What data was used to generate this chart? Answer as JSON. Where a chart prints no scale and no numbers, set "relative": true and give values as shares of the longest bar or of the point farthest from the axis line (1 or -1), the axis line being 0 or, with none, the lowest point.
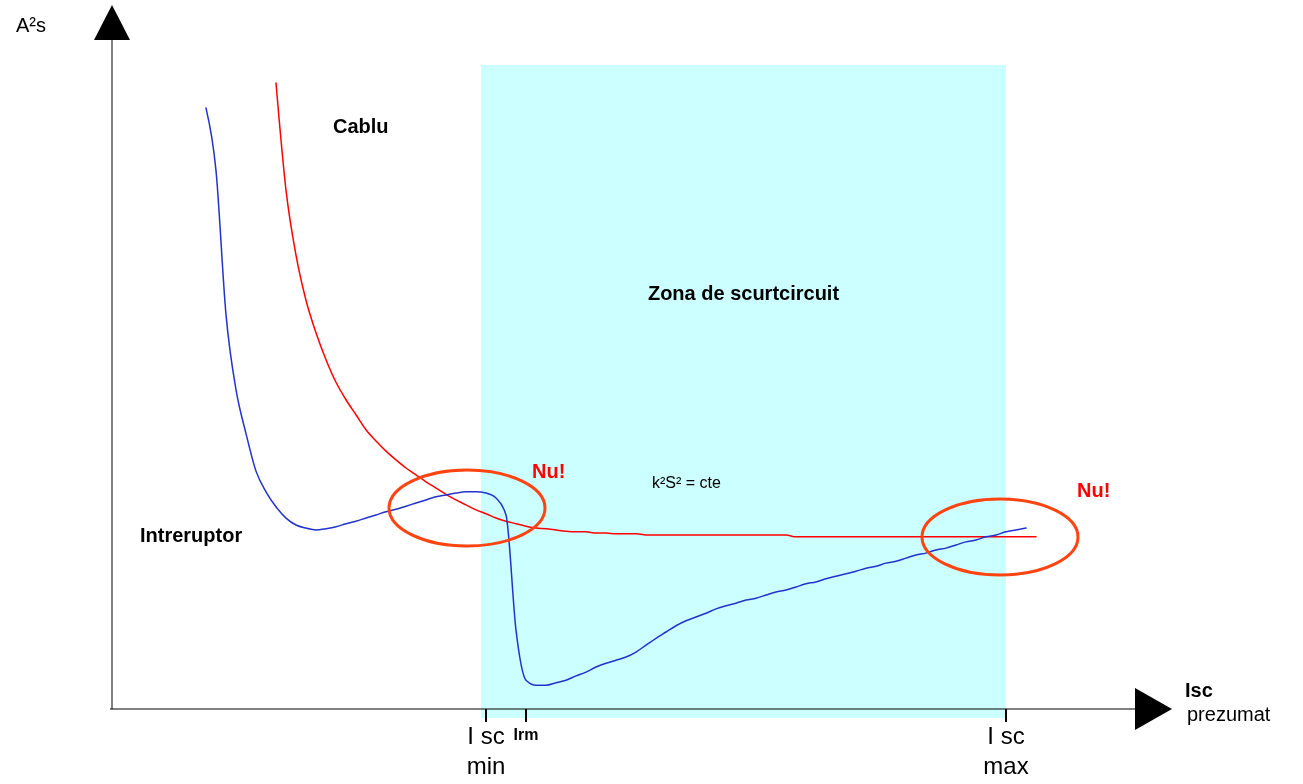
{
  "chart_data": {
    "type": "line",
    "relative": true,
    "categories": [
      null,
      null,
      null,
      null,
      null,
      null,
      null,
      null,
      null,
      null,
      null,
      null,
      null,
      null,
      null,
      null,
      null,
      null,
      null,
      null,
      null,
      null,
      null,
      null,
      null,
      null,
      null,
      null,
      "I sc\nmin",
      null,
      null,
      null,
      "Irm",
      null,
      null,
      null,
      null,
      null,
      null,
      null,
      null,
      null,
      null,
      null,
      null,
      null,
      null,
      null,
      null,
      null,
      null,
      null,
      null,
      null,
      null,
      null,
      null,
      null,
      null,
      null,
      null,
      null,
      null,
      null,
      null,
      null,
      null,
      null,
      null,
      null,
      null,
      null,
      null,
      null,
      null,
      null,
      null,
      null,
      null,
      null,
      "I sc\nmax",
      null,
      null,
      null,
      null
    ],
    "bands": [
      {
        "axis": "x",
        "from": "I sc\nmin",
        "to": "I sc\nmax",
        "label": "Zona de scurtcircuit",
        "color": "#ccffff"
      }
    ],
    "annotations": [
      "A²s",
      "Isc\nprezumat",
      "k²S² = cte",
      "Nu!",
      "Nu!"
    ],
    "series": [
      {
        "name": "Cablu",
        "color": "#ff0000",
        "values": [
          null,
          null,
          null,
          null,
          null,
          null,
          null,
          1.0,
          0.829,
          0.725,
          0.653,
          0.601,
          0.558,
          0.522,
          0.494,
          0.47,
          0.446,
          0.428,
          0.412,
          0.398,
          0.385,
          0.374,
          0.363,
          0.353,
          0.343,
          0.334,
          0.326,
          0.318,
          0.312,
          0.305,
          0.3,
          0.296,
          0.292,
          0.289,
          0.288,
          0.286,
          0.284,
          0.283,
          0.283,
          0.281,
          0.281,
          0.28,
          0.28,
          0.28,
          0.278,
          0.278,
          0.278,
          0.278,
          0.278,
          0.278,
          0.278,
          0.278,
          0.278,
          0.278,
          0.278,
          0.278,
          0.278,
          0.278,
          0.278,
          0.275,
          0.275,
          0.275,
          0.275,
          0.275,
          0.275,
          0.275,
          0.275,
          0.275,
          0.275,
          0.275,
          0.275,
          0.275,
          0.275,
          0.275,
          0.275,
          0.275,
          0.275,
          0.275,
          0.275,
          0.275,
          0.275,
          0.275,
          0.275,
          0.275,
          null
        ]
      },
      {
        "name": "Intreruptor",
        "color": "#2233cc",
        "values": [
          0.96,
          0.86,
          0.63,
          0.51,
          0.44,
          0.38,
          0.347,
          0.323,
          0.305,
          0.294,
          0.289,
          0.286,
          0.288,
          0.291,
          0.296,
          0.3,
          0.305,
          0.31,
          0.315,
          0.319,
          0.324,
          0.329,
          0.334,
          0.339,
          0.342,
          0.345,
          0.347,
          0.347,
          0.345,
          0.337,
          0.31,
          0.126,
          0.046,
          0.038,
          0.038,
          0.042,
          0.046,
          0.053,
          0.059,
          0.067,
          0.073,
          0.078,
          0.083,
          0.091,
          0.102,
          0.113,
          0.123,
          0.133,
          0.141,
          0.147,
          0.153,
          0.16,
          0.165,
          0.169,
          0.174,
          0.177,
          0.182,
          0.187,
          0.19,
          0.195,
          0.2,
          0.203,
          0.208,
          0.212,
          0.216,
          0.22,
          0.225,
          0.228,
          0.233,
          0.236,
          0.241,
          0.246,
          0.249,
          0.254,
          0.257,
          0.262,
          0.267,
          0.27,
          0.275,
          0.278,
          0.283,
          0.286,
          0.289,
          null,
          null
        ]
      }
    ]
  }
}
